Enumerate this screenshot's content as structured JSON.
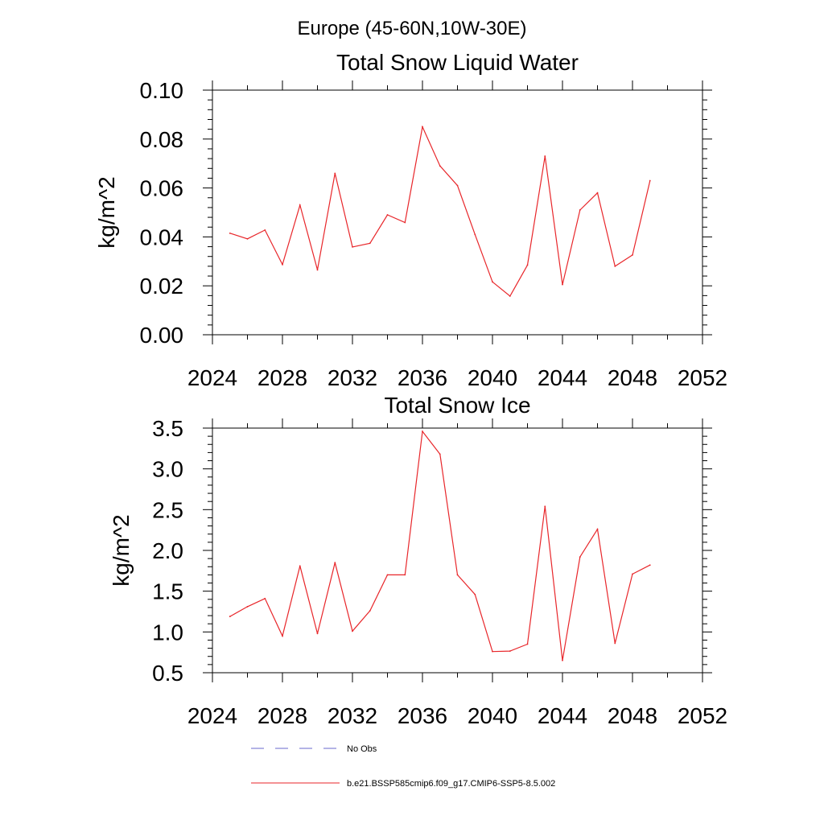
{
  "page_title": "Europe (45-60N,10W-30E)",
  "legend": {
    "entries": [
      {
        "label": "No Obs",
        "color": "#6a6acd",
        "dash": true
      },
      {
        "label": "b.e21.BSSP585cmip6.f09_g17.CMIP6-SSP5-8.5.002",
        "color": "#e8262a",
        "dash": false
      }
    ]
  },
  "chart_data": [
    {
      "type": "line",
      "title": "Total Snow Liquid Water",
      "ylabel": "kg/m^2",
      "xlim": [
        2024,
        2052
      ],
      "ylim": [
        0,
        0.1
      ],
      "x_ticks": [
        "2024",
        "2028",
        "2032",
        "2036",
        "2040",
        "2044",
        "2048",
        "2052"
      ],
      "y_ticks": [
        "0.00",
        "0.02",
        "0.04",
        "0.06",
        "0.08",
        "0.10"
      ],
      "series": [
        {
          "name": "b.e21.BSSP585cmip6.f09_g17.CMIP6-SSP5-8.5.002",
          "color": "#e8262a",
          "x": [
            2025,
            2026,
            2027,
            2028,
            2029,
            2030,
            2031,
            2032,
            2033,
            2034,
            2035,
            2036,
            2037,
            2038,
            2039,
            2040,
            2041,
            2042,
            2043,
            2044,
            2045,
            2046,
            2047,
            2048,
            2049
          ],
          "values": [
            0.0415,
            0.0392,
            0.0428,
            0.0287,
            0.053,
            0.0265,
            0.066,
            0.0359,
            0.0374,
            0.049,
            0.0459,
            0.085,
            0.069,
            0.061,
            0.041,
            0.0216,
            0.0158,
            0.0285,
            0.073,
            0.0205,
            0.051,
            0.058,
            0.028,
            0.0326,
            0.063
          ]
        }
      ]
    },
    {
      "type": "line",
      "title": "Total Snow Ice",
      "ylabel": "kg/m^2",
      "xlim": [
        2024,
        2052
      ],
      "ylim": [
        0.5,
        3.5
      ],
      "x_ticks": [
        "2024",
        "2028",
        "2032",
        "2036",
        "2040",
        "2044",
        "2048",
        "2052"
      ],
      "y_ticks": [
        "0.5",
        "1.0",
        "1.5",
        "2.0",
        "2.5",
        "3.0",
        "3.5"
      ],
      "series": [
        {
          "name": "b.e21.BSSP585cmip6.f09_g17.CMIP6-SSP5-8.5.002",
          "color": "#e8262a",
          "x": [
            2025,
            2026,
            2027,
            2028,
            2029,
            2030,
            2031,
            2032,
            2033,
            2034,
            2035,
            2036,
            2037,
            2038,
            2039,
            2040,
            2041,
            2042,
            2043,
            2044,
            2045,
            2046,
            2047,
            2048,
            2049
          ],
          "values": [
            1.19,
            1.31,
            1.41,
            0.95,
            1.81,
            0.98,
            1.85,
            1.01,
            1.26,
            1.7,
            1.7,
            3.46,
            3.18,
            1.7,
            1.46,
            0.76,
            0.765,
            0.85,
            2.54,
            0.65,
            1.92,
            2.26,
            0.86,
            1.71,
            1.82
          ]
        }
      ]
    }
  ]
}
